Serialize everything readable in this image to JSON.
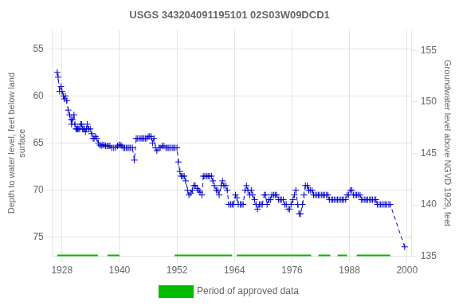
{
  "chart_data": {
    "type": "line",
    "title": "USGS 343204091195101 02S03W09DCD1",
    "ylabel": "Depth to water level, feet below land\nsurface",
    "y2label": "Groundwater level above NGVD 1929, feet",
    "xlim": [
      1926,
      2001
    ],
    "xticks": [
      1928,
      1940,
      1952,
      1964,
      1976,
      1988,
      2000
    ],
    "ylim": [
      77,
      53
    ],
    "yticks": [
      55,
      60,
      65,
      70,
      75
    ],
    "y2lim": [
      135,
      157
    ],
    "y2ticks": [
      135,
      140,
      145,
      150,
      155
    ],
    "grid": true,
    "legend": "bottom",
    "x": [
      1927.0,
      1927.2,
      1927.5,
      1927.8,
      1928.0,
      1928.3,
      1928.5,
      1928.7,
      1929.0,
      1929.3,
      1929.6,
      1929.9,
      1930.0,
      1930.2,
      1930.5,
      1930.7,
      1930.9,
      1931.1,
      1931.3,
      1931.5,
      1931.7,
      1931.9,
      1932.1,
      1932.3,
      1932.5,
      1932.7,
      1932.9,
      1933.1,
      1933.3,
      1933.6,
      1933.9,
      1934.2,
      1934.5,
      1934.7,
      1935.0,
      1935.3,
      1935.6,
      1935.9,
      1936.2,
      1936.5,
      1936.8,
      1937.1,
      1937.4,
      1937.7,
      1938.0,
      1938.4,
      1938.8,
      1939.2,
      1939.6,
      1939.9,
      1940.2,
      1940.5,
      1940.8,
      1941.1,
      1941.4,
      1941.7,
      1942.0,
      1942.3,
      1942.7,
      1943.1,
      1943.5,
      1943.8,
      1944.2,
      1944.5,
      1944.8,
      1945.1,
      1945.4,
      1945.7,
      1946.0,
      1946.3,
      1946.6,
      1946.9,
      1947.2,
      1947.5,
      1947.8,
      1948.2,
      1948.5,
      1948.9,
      1949.3,
      1949.7,
      1950.0,
      1950.3,
      1950.6,
      1951.0,
      1951.3,
      1951.6,
      1952.0,
      1952.3,
      1952.6,
      1952.9,
      1953.2,
      1953.5,
      1953.8,
      1954.2,
      1954.5,
      1954.9,
      1955.2,
      1955.5,
      1955.8,
      1956.2,
      1956.5,
      1956.8,
      1957.2,
      1957.5,
      1957.8,
      1958.2,
      1958.5,
      1958.8,
      1959.2,
      1959.5,
      1959.8,
      1960.2,
      1960.5,
      1960.8,
      1961.2,
      1961.5,
      1961.8,
      1962.2,
      1962.5,
      1962.8,
      1963.2,
      1963.5,
      1963.8,
      1964.2,
      1964.5,
      1964.8,
      1965.2,
      1965.5,
      1965.8,
      1966.2,
      1966.5,
      1966.8,
      1967.2,
      1967.5,
      1967.8,
      1968.2,
      1968.5,
      1968.8,
      1969.2,
      1969.5,
      1969.8,
      1970.2,
      1970.5,
      1970.8,
      1971.2,
      1971.5,
      1971.8,
      1972.2,
      1972.5,
      1972.8,
      1973.2,
      1973.5,
      1973.8,
      1974.2,
      1974.5,
      1974.8,
      1975.2,
      1975.5,
      1975.8,
      1976.2,
      1976.5,
      1976.8,
      1977.2,
      1977.5,
      1977.8,
      1978.2,
      1978.5,
      1978.8,
      1979.2,
      1979.5,
      1979.8,
      1980.2,
      1980.5,
      1980.8,
      1981.2,
      1981.5,
      1981.8,
      1982.2,
      1982.5,
      1982.8,
      1983.2,
      1983.5,
      1983.8,
      1984.2,
      1984.5,
      1984.8,
      1985.2,
      1985.5,
      1985.8,
      1986.2,
      1986.5,
      1986.8,
      1987.2,
      1987.5,
      1987.8,
      1988.2,
      1988.5,
      1988.8,
      1989.2,
      1989.5,
      1989.8,
      1990.2,
      1990.5,
      1990.8,
      1991.2,
      1991.5,
      1991.8,
      1992.2,
      1992.5,
      1992.8,
      1993.2,
      1993.5,
      1993.8,
      1994.2,
      1994.5,
      1994.8,
      1995.2,
      1995.5,
      1995.8,
      1996.2,
      1996.5,
      1999.5
    ],
    "series": [
      {
        "color": "#0000CC",
        "marker": "plus",
        "line_style": "dashed",
        "values": [
          57.5,
          58.0,
          59.5,
          59.0,
          59.5,
          60.0,
          60.3,
          60.0,
          60.5,
          61.5,
          62.0,
          62.5,
          63.0,
          62.5,
          62.0,
          63.0,
          63.5,
          63.5,
          63.5,
          63.5,
          63.5,
          63.0,
          63.0,
          63.5,
          63.5,
          63.5,
          63.8,
          63.5,
          63.0,
          63.5,
          63.5,
          64.0,
          64.5,
          64.5,
          64.3,
          64.5,
          65.0,
          65.2,
          65.3,
          65.2,
          65.2,
          65.3,
          65.3,
          65.3,
          65.3,
          65.5,
          65.5,
          65.5,
          65.3,
          65.2,
          65.2,
          65.3,
          65.5,
          65.5,
          65.5,
          65.5,
          65.5,
          65.5,
          65.5,
          66.8,
          64.5,
          64.5,
          64.5,
          64.5,
          64.5,
          64.5,
          64.5,
          64.5,
          64.3,
          64.3,
          64.3,
          65.0,
          64.5,
          65.5,
          65.8,
          65.5,
          65.5,
          65.3,
          65.3,
          65.5,
          65.5,
          65.5,
          65.5,
          65.5,
          65.5,
          65.5,
          65.5,
          67.0,
          68.0,
          68.5,
          68.5,
          68.5,
          69.0,
          70.0,
          70.5,
          70.3,
          70.0,
          69.5,
          69.5,
          69.8,
          70.0,
          70.2,
          70.5,
          68.5,
          68.5,
          68.5,
          68.5,
          68.5,
          68.5,
          69.0,
          69.5,
          70.0,
          70.0,
          70.5,
          69.5,
          69.0,
          69.5,
          69.5,
          70.0,
          71.5,
          71.5,
          71.5,
          71.5,
          70.5,
          70.8,
          71.5,
          71.5,
          71.5,
          71.5,
          70.0,
          69.5,
          70.0,
          70.5,
          70.0,
          70.5,
          71.0,
          71.5,
          72.0,
          71.5,
          71.5,
          71.5,
          70.5,
          70.5,
          71.5,
          71.0,
          71.0,
          70.5,
          70.5,
          70.5,
          70.5,
          71.0,
          71.0,
          71.0,
          71.0,
          71.5,
          71.5,
          72.0,
          72.0,
          71.5,
          71.0,
          70.5,
          70.0,
          71.5,
          72.5,
          72.5,
          71.5,
          70.5,
          69.5,
          69.5,
          70.0,
          70.0,
          70.0,
          70.5,
          70.5,
          70.5,
          70.5,
          70.5,
          70.5,
          70.5,
          70.5,
          70.5,
          70.5,
          71.0,
          71.0,
          71.0,
          71.0,
          71.0,
          71.0,
          71.0,
          71.0,
          71.0,
          71.0,
          71.0,
          70.5,
          70.5,
          70.0,
          70.0,
          70.5,
          70.5,
          70.5,
          70.5,
          70.5,
          71.0,
          71.0,
          71.0,
          71.0,
          71.0,
          71.0,
          71.0,
          71.0,
          71.0,
          71.0,
          71.5,
          71.5,
          71.5,
          71.5,
          71.5,
          71.5,
          71.5,
          71.5,
          71.5,
          76.0
        ]
      },
      {
        "name": "Period of approved data",
        "color": "#00bb00",
        "line_style": "solid",
        "value": 77.0,
        "periods": [
          [
            1927.0,
            1935.5
          ],
          [
            1937.5,
            1940.0
          ],
          [
            1951.5,
            1963.5
          ],
          [
            1964.5,
            1980.0
          ],
          [
            1981.5,
            1984.0
          ],
          [
            1985.5,
            1987.5
          ],
          [
            1989.5,
            1996.5
          ]
        ]
      }
    ]
  }
}
